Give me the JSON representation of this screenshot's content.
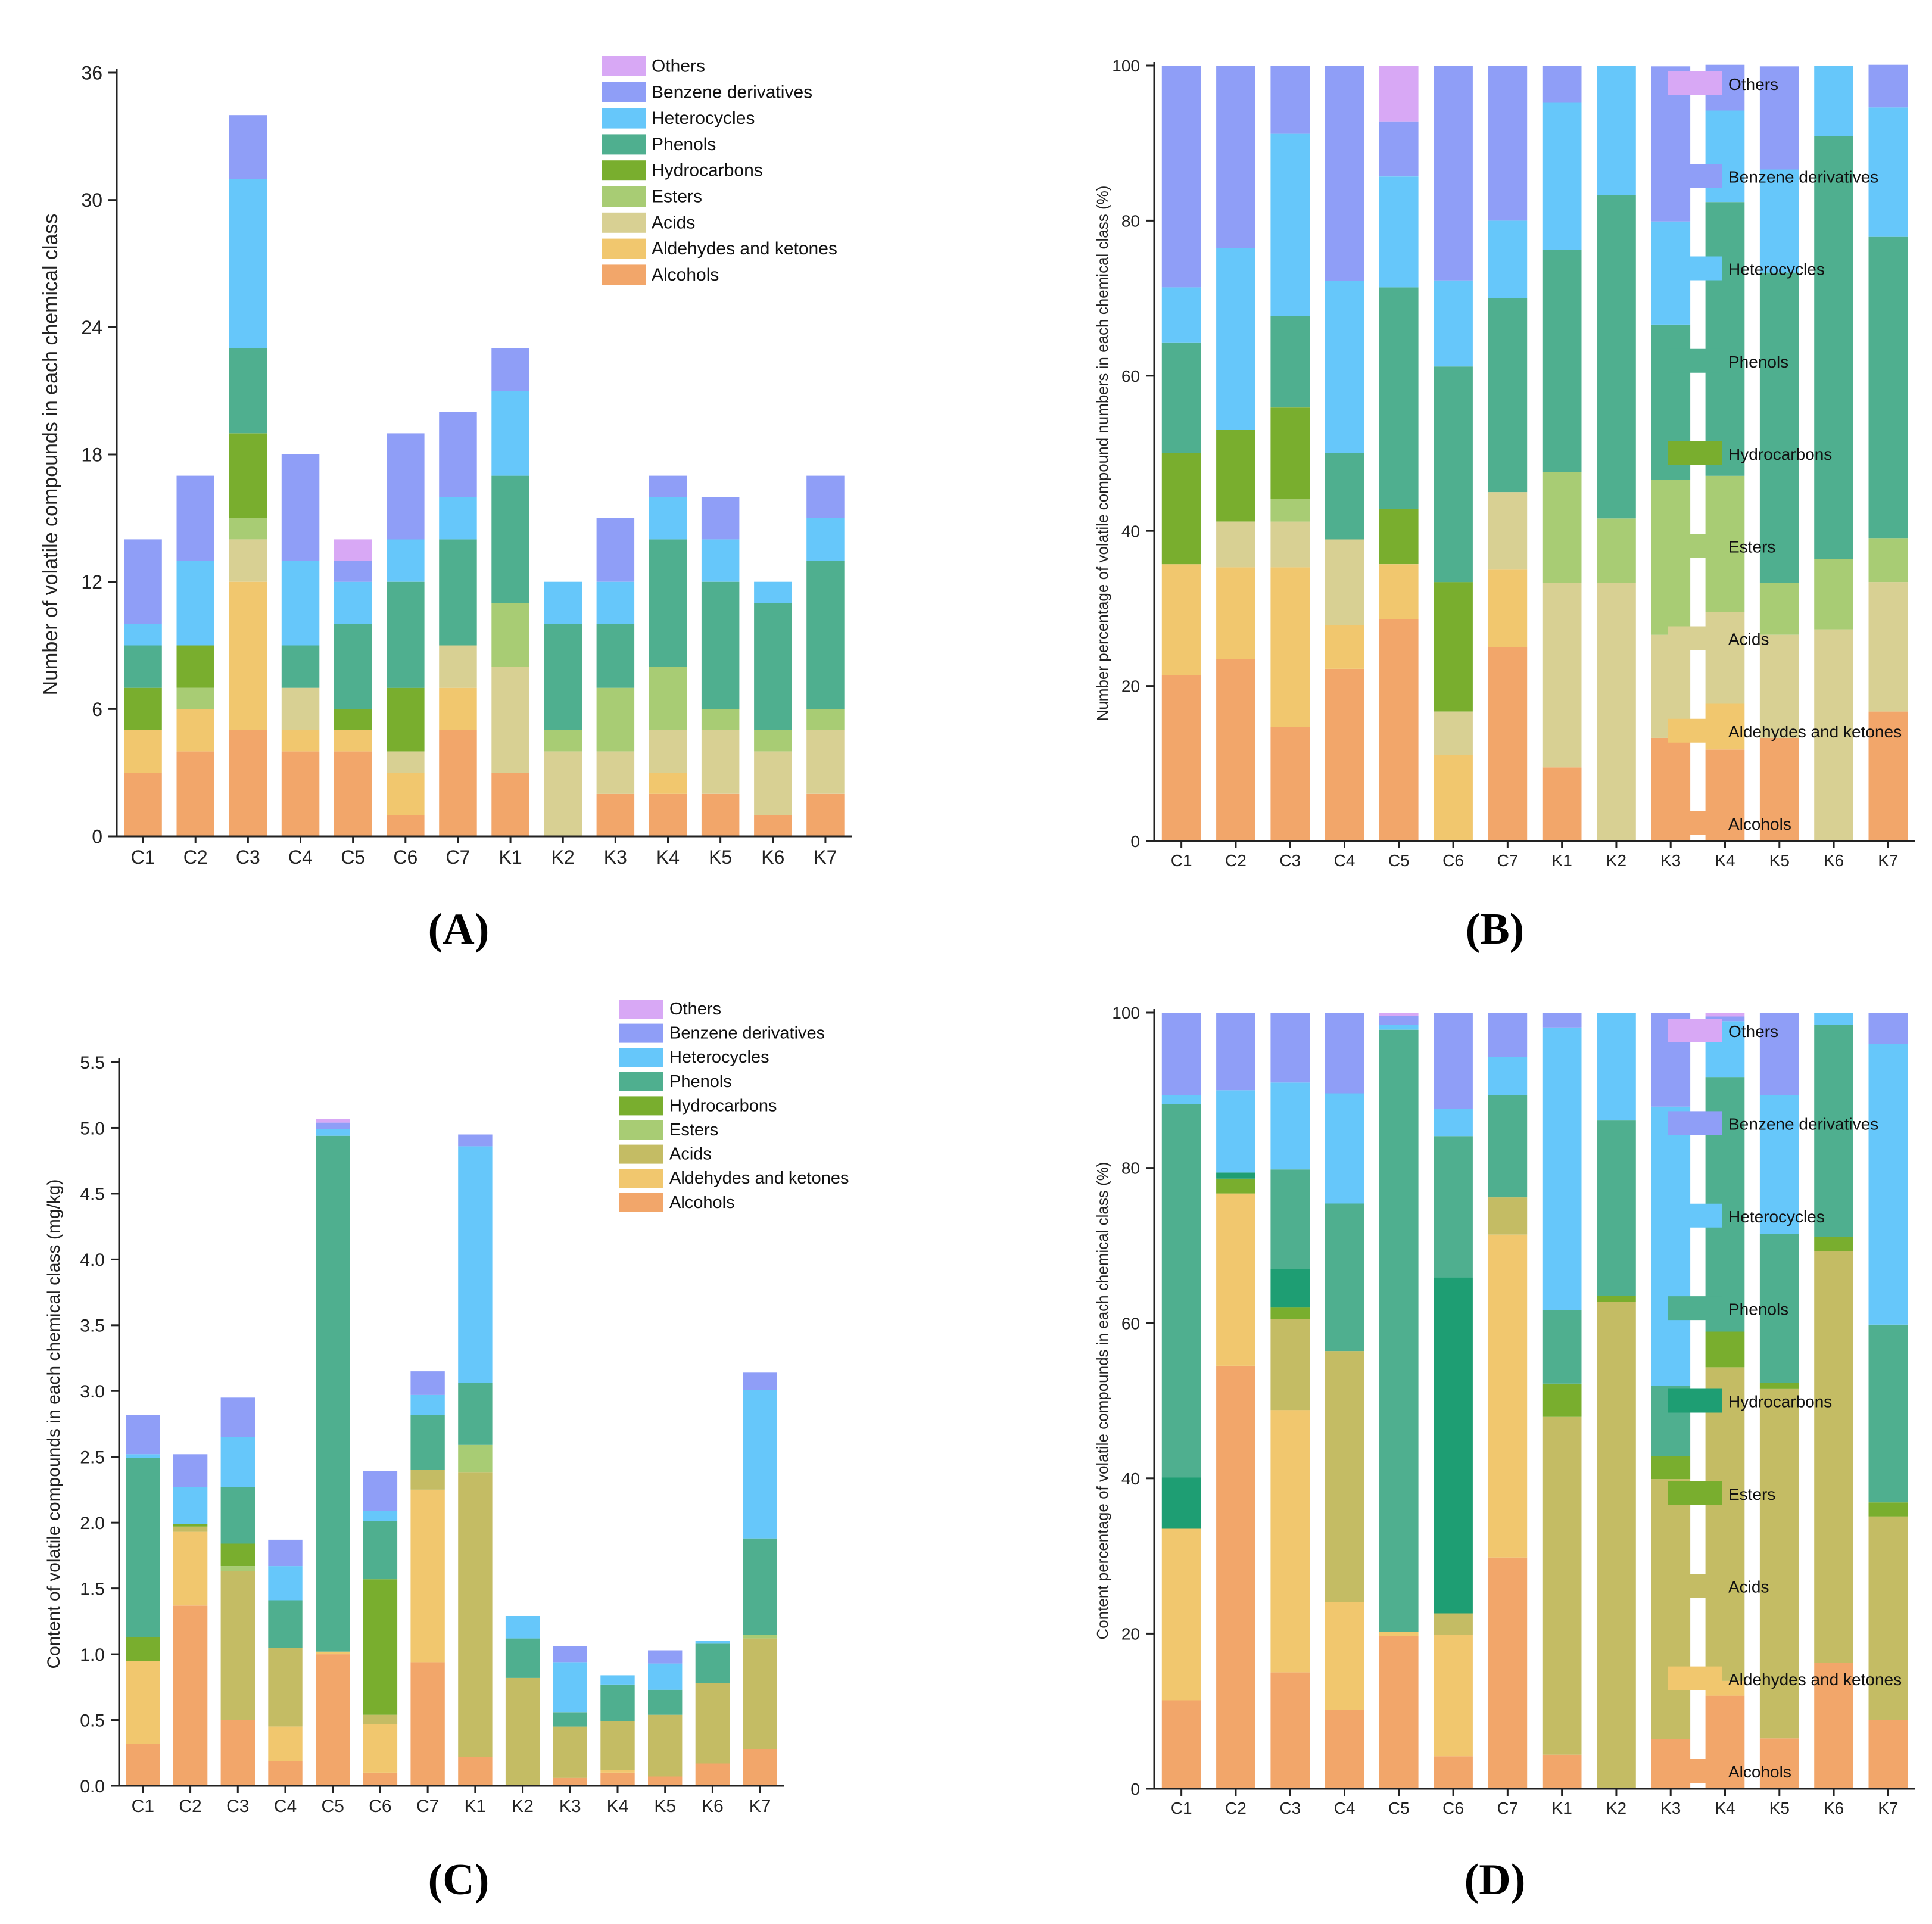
{
  "categories": [
    "C1",
    "C2",
    "C3",
    "C4",
    "C5",
    "C6",
    "C7",
    "K1",
    "K2",
    "K3",
    "K4",
    "K5",
    "K6",
    "K7"
  ],
  "colors": {
    "Alcohols": "#F2A66A",
    "Aldehydes and ketones": "#F1C76E",
    "Acids": "#D8D093",
    "Acids_C": "#C4BC64",
    "Esters": "#A8CC74",
    "Hydrocarbons": "#79AE2E",
    "Hydrocarbons_D": "#1E9E73",
    "Phenols": "#4FAF8F",
    "Heterocycles": "#66C7FA",
    "Benzene derivatives": "#8F9EF7",
    "Others": "#D8A8F5"
  },
  "chart_data": [
    {
      "id": "A",
      "panel_label": "(A)",
      "type": "stacked-bar",
      "ylabel": "Number of volatile compounds in each chemical class",
      "ylim": [
        0,
        36
      ],
      "yticks": [
        "0",
        "6",
        "12",
        "18",
        "24",
        "30",
        "36"
      ],
      "legend": [
        "Others",
        "Benzene derivatives",
        "Heterocycles",
        "Phenols",
        "Hydrocarbons",
        "Esters",
        "Acids",
        "Aldehydes and ketones",
        "Alcohols"
      ],
      "legend_placement": "top-right",
      "series": [
        {
          "name": "Alcohols",
          "values": [
            3,
            4,
            5,
            4,
            4,
            1,
            5,
            3,
            0,
            2,
            2,
            2,
            1,
            2
          ]
        },
        {
          "name": "Aldehydes and ketones",
          "values": [
            2,
            2,
            7,
            1,
            1,
            2,
            2,
            0,
            0,
            0,
            1,
            0,
            0,
            0
          ]
        },
        {
          "name": "Acids",
          "values": [
            0,
            0,
            2,
            2,
            0,
            1,
            2,
            5,
            4,
            2,
            2,
            3,
            3,
            3
          ]
        },
        {
          "name": "Esters",
          "values": [
            0,
            1,
            1,
            0,
            0,
            0,
            0,
            3,
            1,
            3,
            3,
            1,
            1,
            1
          ]
        },
        {
          "name": "Hydrocarbons",
          "values": [
            2,
            2,
            4,
            0,
            1,
            3,
            0,
            0,
            0,
            0,
            0,
            0,
            0,
            0
          ]
        },
        {
          "name": "Phenols",
          "values": [
            2,
            0,
            4,
            2,
            4,
            5,
            5,
            6,
            5,
            3,
            6,
            6,
            6,
            7
          ]
        },
        {
          "name": "Heterocycles",
          "values": [
            1,
            4,
            8,
            4,
            2,
            2,
            2,
            4,
            2,
            2,
            2,
            2,
            1,
            2
          ]
        },
        {
          "name": "Benzene derivatives",
          "values": [
            4,
            4,
            3,
            5,
            1,
            5,
            4,
            2,
            0,
            3,
            1,
            2,
            0,
            2
          ]
        },
        {
          "name": "Others",
          "values": [
            0,
            0,
            0,
            0,
            1,
            0,
            0,
            0,
            0,
            0,
            0,
            0,
            0,
            0
          ]
        }
      ]
    },
    {
      "id": "B",
      "panel_label": "(B)",
      "type": "stacked-bar-percent",
      "ylabel": "Number percentage of volatile compound numbers in each chemical class (%)",
      "ylim": [
        0,
        100
      ],
      "yticks": [
        "0",
        "20",
        "40",
        "60",
        "80",
        "100"
      ],
      "legend": [
        "Others",
        "Benzene derivatives",
        "Heterocycles",
        "Phenols",
        "Hydrocarbons",
        "Esters",
        "Acids",
        "Aldehydes and ketones",
        "Alcohols"
      ],
      "legend_placement": "right",
      "series": [
        {
          "name": "Alcohols",
          "values": [
            21.4,
            23.5,
            14.7,
            22.2,
            28.6,
            0,
            25,
            9.5,
            0,
            13.3,
            11.8,
            13.3,
            0,
            16.7
          ]
        },
        {
          "name": "Aldehydes and ketones",
          "values": [
            14.3,
            11.8,
            20.6,
            5.6,
            7.1,
            11.1,
            10,
            0,
            0,
            0,
            5.9,
            0,
            0,
            0
          ]
        },
        {
          "name": "Acids",
          "values": [
            0,
            5.9,
            5.9,
            11.1,
            0,
            5.6,
            10,
            23.8,
            33.3,
            13.3,
            11.8,
            13.3,
            27.3,
            16.7
          ]
        },
        {
          "name": "Esters",
          "values": [
            0,
            0,
            2.9,
            0,
            0,
            0,
            0,
            14.3,
            8.3,
            20,
            17.6,
            6.7,
            9.1,
            5.6
          ]
        },
        {
          "name": "Hydrocarbons",
          "values": [
            14.3,
            11.8,
            11.8,
            0,
            7.1,
            16.7,
            0,
            0,
            0,
            0,
            0,
            0,
            0,
            0
          ]
        },
        {
          "name": "Phenols",
          "values": [
            14.3,
            0,
            11.8,
            11.1,
            28.6,
            27.8,
            25,
            28.6,
            41.7,
            20,
            35.3,
            40,
            54.5,
            38.9
          ]
        },
        {
          "name": "Heterocycles",
          "values": [
            7.1,
            23.5,
            23.5,
            22.2,
            14.3,
            11.1,
            10,
            19,
            16.7,
            13.3,
            11.8,
            13.3,
            9.1,
            16.7
          ]
        },
        {
          "name": "Benzene derivatives",
          "values": [
            28.6,
            23.5,
            8.8,
            27.8,
            7.1,
            27.7,
            20,
            4.8,
            0,
            20,
            5.9,
            13.3,
            0,
            5.5
          ]
        },
        {
          "name": "Others",
          "values": [
            0,
            0,
            0,
            0,
            7.2,
            0,
            0,
            0,
            0,
            0,
            0,
            0,
            0,
            0
          ]
        }
      ]
    },
    {
      "id": "C",
      "panel_label": "(C)",
      "type": "stacked-bar",
      "ylabel": "Content of volatile compounds in each chemical class (mg/kg)",
      "ylim": [
        0,
        5.5
      ],
      "yticks": [
        "0.0",
        "0.5",
        "1.0",
        "1.5",
        "2.0",
        "2.5",
        "3.0",
        "3.5",
        "4.0",
        "4.5",
        "5.0",
        "5.5"
      ],
      "legend": [
        "Others",
        "Benzene derivatives",
        "Heterocycles",
        "Phenols",
        "Hydrocarbons",
        "Esters",
        "Acids",
        "Aldehydes and ketones",
        "Alcohols"
      ],
      "legend_placement": "top-right",
      "series": [
        {
          "name": "Alcohols",
          "values": [
            0.32,
            1.37,
            0.5,
            0.19,
            1.0,
            0.1,
            0.94,
            0.22,
            0,
            0.06,
            0.1,
            0.07,
            0.17,
            0.28
          ]
        },
        {
          "name": "Aldehydes and ketones",
          "values": [
            0.63,
            0.56,
            0,
            0.26,
            0.02,
            0.37,
            1.31,
            0,
            0,
            0,
            0.02,
            0,
            0,
            0
          ]
        },
        {
          "name": "Acids",
          "values": [
            0,
            0.04,
            1.13,
            0.6,
            0,
            0.07,
            0.15,
            2.16,
            0.82,
            0.39,
            0.37,
            0.47,
            0.61,
            0.84
          ]
        },
        {
          "name": "Esters",
          "values": [
            0,
            0,
            0.04,
            0,
            0,
            0,
            0,
            0.21,
            0,
            0,
            0,
            0,
            0,
            0.03
          ]
        },
        {
          "name": "Hydrocarbons",
          "values": [
            0.18,
            0.02,
            0.17,
            0,
            0,
            1.03,
            0,
            0,
            0,
            0,
            0,
            0,
            0,
            0
          ]
        },
        {
          "name": "Phenols",
          "values": [
            1.36,
            0,
            0.43,
            0.36,
            3.92,
            0.44,
            0.42,
            0.47,
            0.3,
            0.11,
            0.28,
            0.19,
            0.3,
            0.73
          ]
        },
        {
          "name": "Heterocycles",
          "values": [
            0.03,
            0.28,
            0.38,
            0.26,
            0.05,
            0.08,
            0.15,
            1.8,
            0.17,
            0.38,
            0.07,
            0.2,
            0.02,
            1.13
          ]
        },
        {
          "name": "Benzene derivatives",
          "values": [
            0.3,
            0.25,
            0.3,
            0.2,
            0.05,
            0.3,
            0.18,
            0.09,
            0,
            0.12,
            0,
            0.1,
            0,
            0.13
          ]
        },
        {
          "name": "Others",
          "values": [
            0,
            0,
            0,
            0,
            0.03,
            0,
            0,
            0,
            0,
            0,
            0,
            0,
            0,
            0
          ]
        }
      ]
    },
    {
      "id": "D",
      "panel_label": "(D)",
      "type": "stacked-bar-percent",
      "ylabel": "Content percentage of volatile compounds in each chemical class (%)",
      "ylim": [
        0,
        100
      ],
      "yticks": [
        "0",
        "20",
        "40",
        "60",
        "80",
        "100"
      ],
      "legend": [
        "Others",
        "Benzene derivatives",
        "Heterocycles",
        "Phenols",
        "Hydrocarbons",
        "Esters",
        "Acids",
        "Aldehydes and ketones",
        "Alcohols"
      ],
      "legend_placement": "right",
      "series": [
        {
          "name": "Alcohols",
          "values": [
            11.4,
            54.5,
            15,
            10.2,
            19.7,
            4.2,
            29.8,
            4.4,
            0,
            6.4,
            12,
            6.5,
            16.2,
            8.9
          ]
        },
        {
          "name": "Aldehydes and ketones",
          "values": [
            22.1,
            22.2,
            33.8,
            13.9,
            0.5,
            15.6,
            41.6,
            0,
            0,
            0,
            1.9,
            0,
            0,
            0
          ]
        },
        {
          "name": "Acids",
          "values": [
            0,
            0,
            11.7,
            32.3,
            0,
            2.8,
            4.8,
            43.5,
            62.7,
            33.5,
            40.4,
            45,
            53.1,
            26.2
          ]
        },
        {
          "name": "Esters",
          "values": [
            0,
            1.9,
            1.5,
            0,
            0,
            0,
            0,
            4.3,
            0.8,
            3,
            4.6,
            0.8,
            1.8,
            1.8
          ]
        },
        {
          "name": "Hydrocarbons",
          "values": [
            6.6,
            0.8,
            5,
            0,
            0,
            43.3,
            0,
            0,
            0,
            0,
            0,
            0,
            0,
            0
          ]
        },
        {
          "name": "Phenols",
          "values": [
            48.1,
            0,
            12.8,
            19,
            77.6,
            18.2,
            13.2,
            9.5,
            22.6,
            9,
            32.8,
            19.2,
            27.3,
            22.9
          ]
        },
        {
          "name": "Heterocycles",
          "values": [
            1.2,
            10.6,
            11.2,
            14.2,
            0.6,
            3.5,
            4.9,
            36.4,
            13.9,
            36,
            7.2,
            17.9,
            1.6,
            36.2
          ]
        },
        {
          "name": "Benzene derivatives",
          "values": [
            10.6,
            10,
            9,
            10.4,
            1.2,
            12.4,
            5.7,
            1.9,
            0,
            12.1,
            0.6,
            10.6,
            0,
            4.0
          ]
        },
        {
          "name": "Others",
          "values": [
            0,
            0,
            0,
            0,
            0.4,
            0,
            0,
            0,
            0,
            0,
            0.5,
            0,
            0,
            0
          ]
        }
      ]
    }
  ]
}
